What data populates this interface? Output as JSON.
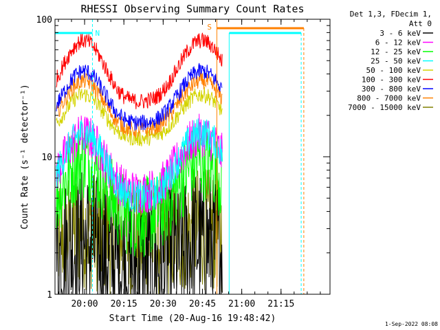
{
  "chart_data": {
    "type": "line",
    "title": "RHESSI Observing Summary Count Rates",
    "xlabel": "Start Time (20-Aug-16 19:48:42)",
    "ylabel": "Count Rate (s⁻¹ detector⁻¹)",
    "y_scale": "log",
    "ylim": [
      1,
      100
    ],
    "xlim_minutes_after_start": [
      0,
      105
    ],
    "xticks": [
      "20:00",
      "20:15",
      "20:30",
      "20:45",
      "21:00",
      "21:15"
    ],
    "xtick_minutes_after_start": [
      11.3,
      26.3,
      41.3,
      56.3,
      71.3,
      86.3
    ],
    "yticks": [
      "1",
      "10",
      "100"
    ],
    "yticks_values": [
      1,
      10,
      100
    ],
    "grid": false,
    "legend_position": "top-right outside",
    "legend_title_lines": [
      "Det 1,3, FDecim 1,",
      "Att 0"
    ],
    "series": [
      {
        "name": "3 - 6 keV",
        "color": "#000000",
        "base": 1.6,
        "amp": 1.5,
        "noise": 0.55
      },
      {
        "name": "6 - 12 keV",
        "color": "#ff00ff",
        "base": 5.5,
        "amp": 2.6,
        "noise": 0.16
      },
      {
        "name": "12 - 25 keV",
        "color": "#00ff00",
        "base": 3.6,
        "amp": 2.6,
        "noise": 0.3
      },
      {
        "name": "25 - 50 keV",
        "color": "#00ffff",
        "base": 5.0,
        "amp": 3.0,
        "noise": 0.12
      },
      {
        "name": "50 - 100 keV",
        "color": "#d4d400",
        "base": 13.5,
        "amp": 2.1,
        "noise": 0.06
      },
      {
        "name": "100 - 300 keV",
        "color": "#ff0000",
        "base": 25,
        "amp": 2.8,
        "noise": 0.06
      },
      {
        "name": "300 - 800 keV",
        "color": "#0000ff",
        "base": 17.5,
        "amp": 2.4,
        "noise": 0.06
      },
      {
        "name": "800 - 7000 keV",
        "color": "#ff8000",
        "base": 15.5,
        "amp": 2.3,
        "noise": 0.06
      },
      {
        "name": "7000 - 15000 keV",
        "color": "#808000",
        "base": 2.5,
        "amp": 1.2,
        "noise": 0.45
      }
    ],
    "annotations": [
      {
        "text": "N",
        "color": "#00ffff"
      },
      {
        "text": "S",
        "color": "#ff8000"
      }
    ],
    "night_intervals_minutes": [
      [
        0,
        14.3
      ],
      [
        66.5,
        94
      ]
    ],
    "saa_interval_minutes": [
      61.8,
      95
    ],
    "data_end_minute": 64
  },
  "timestamp": "1-Sep-2022 08:08"
}
